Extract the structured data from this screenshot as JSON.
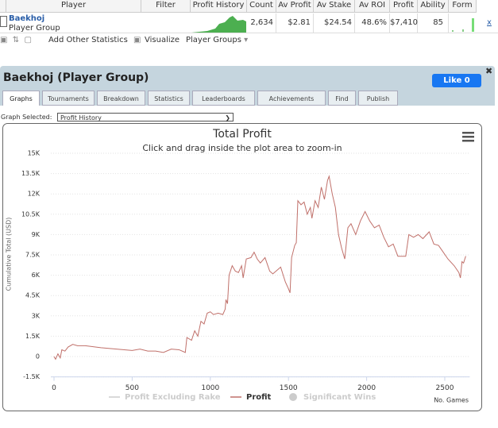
{
  "table": {
    "columns": [
      "Player",
      "Filter",
      "Profit History",
      "Count",
      "Av Profit",
      "Av Stake",
      "Av ROI",
      "Profit",
      "Ability",
      "Form"
    ],
    "row": {
      "player": "Baekhoj",
      "group": "Player Group",
      "count": "2,634",
      "av_profit": "$2.81",
      "av_stake": "$24.54",
      "av_roi": "48.6%",
      "profit": "$7,410",
      "ability": "85",
      "remove": "x"
    }
  },
  "toolbar": {
    "add": "Add Other Statistics",
    "visualize": "Visualize",
    "groups": "Player Groups"
  },
  "panel": {
    "title": "Baekhoj (Player Group)",
    "like": "Like 0",
    "tabs": [
      "Graphs",
      "Tournaments",
      "Breakdown",
      "Statistics",
      "Leaderboards",
      "Achievements",
      "Find",
      "Publish"
    ],
    "graph_selected_label": "Graph Selected:",
    "graph_selected": "Profit History"
  },
  "chart_data": {
    "type": "line",
    "title": "Total Profit",
    "subtitle": "Click and drag inside the plot area to zoom-in",
    "y_label": "Cumulative Total (USD)",
    "x_label": "No. Games",
    "legend": [
      {
        "name": "Profit Excluding Rake",
        "color": "#cccccc"
      },
      {
        "name": "Profit",
        "color": "#c0706a"
      },
      {
        "name": "Significant Wins",
        "color": "#cccccc"
      }
    ],
    "color": "#c0706a",
    "x": [
      0,
      10,
      25,
      40,
      50,
      70,
      90,
      120,
      150,
      200,
      300,
      400,
      500,
      550,
      600,
      650,
      700,
      750,
      800,
      840,
      850,
      880,
      900,
      920,
      940,
      960,
      980,
      1000,
      1020,
      1050,
      1080,
      1095,
      1100,
      1110,
      1120,
      1140,
      1160,
      1180,
      1200,
      1210,
      1230,
      1260,
      1280,
      1300,
      1320,
      1350,
      1380,
      1400,
      1420,
      1450,
      1480,
      1500,
      1510,
      1520,
      1540,
      1550,
      1560,
      1580,
      1600,
      1620,
      1640,
      1650,
      1670,
      1690,
      1710,
      1730,
      1750,
      1760,
      1780,
      1800,
      1820,
      1840,
      1860,
      1880,
      1900,
      1930,
      1960,
      1990,
      2020,
      2050,
      2080,
      2110,
      2140,
      2170,
      2200,
      2250,
      2270,
      2300,
      2330,
      2360,
      2400,
      2430,
      2460,
      2490,
      2520,
      2560,
      2590,
      2600,
      2610,
      2620,
      2634
    ],
    "values": [
      0,
      -200,
      200,
      -100,
      500,
      400,
      700,
      900,
      800,
      800,
      650,
      550,
      450,
      550,
      400,
      400,
      300,
      550,
      500,
      300,
      1400,
      1200,
      1900,
      1500,
      2600,
      2400,
      3200,
      3300,
      3100,
      3200,
      3100,
      3500,
      4200,
      3900,
      6000,
      6700,
      6300,
      6200,
      6700,
      5800,
      7200,
      7300,
      7700,
      7200,
      6900,
      7300,
      6300,
      6100,
      6300,
      6600,
      5500,
      5000,
      4700,
      7300,
      8200,
      8400,
      11500,
      11200,
      11400,
      10500,
      11000,
      10200,
      11500,
      11000,
      12500,
      11600,
      13000,
      13300,
      12000,
      11000,
      9000,
      8000,
      7200,
      9500,
      9800,
      9000,
      10000,
      10700,
      10000,
      9500,
      9700,
      8800,
      8100,
      8300,
      7400,
      7400,
      9000,
      8800,
      9000,
      8700,
      9200,
      8300,
      8200,
      7700,
      7200,
      6700,
      6200,
      5800,
      7000,
      6900,
      7410
    ],
    "xlim": [
      -20,
      2660
    ],
    "ylim": [
      -1500,
      15000
    ],
    "xticks": [
      0,
      500,
      1000,
      1500,
      2000,
      2500
    ],
    "yticks": [
      {
        "value": -1500,
        "label": "-1.5K"
      },
      0,
      {
        "value": 1500,
        "label": "1.5K"
      },
      {
        "value": 3000,
        "label": "3K"
      },
      {
        "value": 4500,
        "label": "4.5K"
      },
      {
        "value": 6000,
        "label": "6K"
      },
      {
        "value": 7500,
        "label": "7.5K"
      },
      {
        "value": 9000,
        "label": "9K"
      },
      {
        "value": 10500,
        "label": "10.5K"
      },
      {
        "value": 12000,
        "label": "12K"
      },
      {
        "value": 13500,
        "label": "13.5K"
      },
      {
        "value": 15000,
        "label": "15K"
      }
    ],
    "grid": true
  }
}
